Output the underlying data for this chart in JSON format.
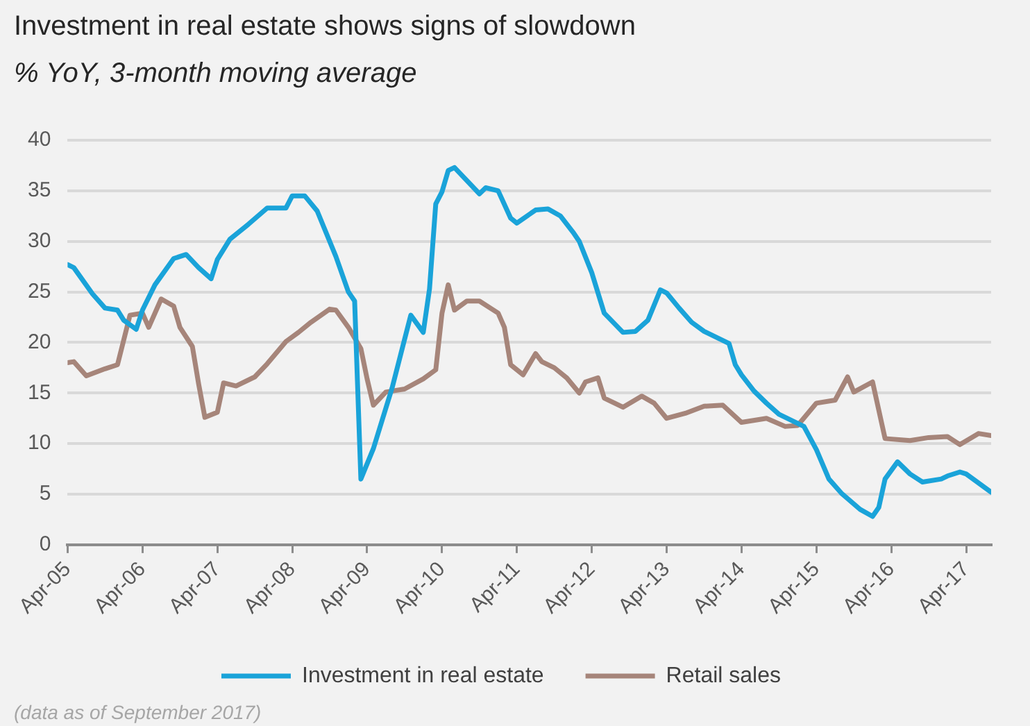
{
  "chart_data": {
    "type": "line",
    "title": "Investment in real estate shows signs of slowdown",
    "subtitle": "% YoY, 3-month moving average",
    "annotations": [
      "(data as of September 2017)"
    ],
    "series": [
      {
        "name": "Investment in real estate",
        "color": "#1aa3d9",
        "x": [
          "2005-04",
          "2005-05",
          "2005-08",
          "2005-10",
          "2005-12",
          "2006-01",
          "2006-03",
          "2006-04",
          "2006-06",
          "2006-09",
          "2006-11",
          "2007-01",
          "2007-03",
          "2007-04",
          "2007-06",
          "2007-09",
          "2007-12",
          "2008-03",
          "2008-04",
          "2008-06",
          "2008-08",
          "2008-11",
          "2009-01",
          "2009-02",
          "2009-03",
          "2009-05",
          "2009-08",
          "2009-11",
          "2010-01",
          "2010-02",
          "2010-03",
          "2010-04",
          "2010-05",
          "2010-06",
          "2010-10",
          "2010-11",
          "2011-01",
          "2011-03",
          "2011-04",
          "2011-07",
          "2011-09",
          "2011-11",
          "2012-01",
          "2012-02",
          "2012-04",
          "2012-06",
          "2012-09",
          "2012-11",
          "2013-01",
          "2013-03",
          "2013-04",
          "2013-06",
          "2013-08",
          "2013-10",
          "2013-12",
          "2014-02",
          "2014-03",
          "2014-04",
          "2014-06",
          "2014-08",
          "2014-10",
          "2015-02",
          "2015-04",
          "2015-06",
          "2015-08",
          "2015-11",
          "2016-01",
          "2016-02",
          "2016-03",
          "2016-05",
          "2016-07",
          "2016-09",
          "2016-12",
          "2017-01",
          "2017-03",
          "2017-04",
          "2017-08"
        ],
        "values": [
          27.7,
          27.4,
          24.8,
          23.4,
          23.2,
          22.2,
          21.3,
          23.2,
          25.7,
          28.3,
          28.7,
          27.4,
          26.3,
          28.2,
          30.2,
          31.7,
          33.3,
          33.3,
          34.5,
          34.5,
          33.0,
          28.5,
          25.0,
          24.1,
          6.5,
          9.5,
          15.5,
          22.7,
          21.0,
          25.3,
          33.7,
          34.9,
          37.0,
          37.3,
          34.7,
          35.3,
          35.0,
          32.3,
          31.8,
          33.1,
          33.2,
          32.5,
          30.9,
          30.0,
          26.9,
          22.9,
          21.0,
          21.1,
          22.2,
          25.2,
          24.9,
          23.4,
          22.0,
          21.1,
          20.5,
          19.9,
          17.8,
          16.8,
          15.2,
          14.0,
          12.9,
          11.7,
          9.4,
          6.5,
          5.1,
          3.5,
          2.8,
          3.7,
          6.5,
          8.2,
          7.0,
          6.2,
          6.5,
          6.8,
          7.2,
          7.0,
          5.2
        ]
      },
      {
        "name": "Retail sales",
        "color": "#a6857a",
        "x": [
          "2005-04",
          "2005-05",
          "2005-07",
          "2005-10",
          "2005-12",
          "2006-02",
          "2006-04",
          "2006-05",
          "2006-07",
          "2006-09",
          "2006-10",
          "2006-12",
          "2007-01",
          "2007-02",
          "2007-04",
          "2007-05",
          "2007-07",
          "2007-10",
          "2007-12",
          "2008-03",
          "2008-05",
          "2008-07",
          "2008-10",
          "2008-11",
          "2009-01",
          "2009-03",
          "2009-04",
          "2009-05",
          "2009-07",
          "2009-10",
          "2010-01",
          "2010-03",
          "2010-04",
          "2010-05",
          "2010-06",
          "2010-08",
          "2010-10",
          "2011-01",
          "2011-02",
          "2011-03",
          "2011-05",
          "2011-07",
          "2011-08",
          "2011-10",
          "2011-12",
          "2012-02",
          "2012-03",
          "2012-05",
          "2012-06",
          "2012-09",
          "2012-12",
          "2013-02",
          "2013-04",
          "2013-07",
          "2013-10",
          "2014-01",
          "2014-04",
          "2014-08",
          "2014-11",
          "2015-01",
          "2015-04",
          "2015-07",
          "2015-09",
          "2015-10",
          "2016-01",
          "2016-03",
          "2016-07",
          "2016-10",
          "2017-01",
          "2017-03",
          "2017-06",
          "2017-08"
        ],
        "values": [
          18.0,
          18.1,
          16.7,
          17.4,
          17.8,
          22.7,
          22.9,
          21.5,
          24.3,
          23.6,
          21.5,
          19.6,
          15.9,
          12.6,
          13.1,
          16.0,
          15.7,
          16.6,
          17.9,
          20.1,
          21.0,
          22.0,
          23.3,
          23.2,
          21.5,
          19.4,
          16.4,
          13.8,
          15.1,
          15.4,
          16.4,
          17.3,
          22.9,
          25.7,
          23.2,
          24.1,
          24.1,
          22.9,
          21.5,
          17.8,
          16.8,
          18.9,
          18.1,
          17.5,
          16.5,
          15.0,
          16.1,
          16.5,
          14.5,
          13.6,
          14.7,
          14.0,
          12.5,
          13.0,
          13.7,
          13.8,
          12.1,
          12.5,
          11.7,
          11.8,
          14.0,
          14.3,
          16.6,
          15.1,
          16.1,
          10.5,
          10.3,
          10.6,
          10.7,
          9.9,
          11.0,
          10.8
        ]
      }
    ],
    "xlim": [
      "2005-04",
      "2017-08"
    ],
    "xticks": [
      {
        "value": "2005-04",
        "label": "Apr-05"
      },
      {
        "value": "2006-04",
        "label": "Apr-06"
      },
      {
        "value": "2007-04",
        "label": "Apr-07"
      },
      {
        "value": "2008-04",
        "label": "Apr-08"
      },
      {
        "value": "2009-04",
        "label": "Apr-09"
      },
      {
        "value": "2010-04",
        "label": "Apr-10"
      },
      {
        "value": "2011-04",
        "label": "Apr-11"
      },
      {
        "value": "2012-04",
        "label": "Apr-12"
      },
      {
        "value": "2013-04",
        "label": "Apr-13"
      },
      {
        "value": "2014-04",
        "label": "Apr-14"
      },
      {
        "value": "2015-04",
        "label": "Apr-15"
      },
      {
        "value": "2016-04",
        "label": "Apr-16"
      },
      {
        "value": "2017-04",
        "label": "Apr-17"
      }
    ],
    "ylim": [
      0,
      40
    ],
    "yticks": [
      0,
      5,
      10,
      15,
      20,
      25,
      30,
      35,
      40
    ],
    "grid": "y",
    "legend": "bottom",
    "marker": "none",
    "line_style": "solid"
  }
}
